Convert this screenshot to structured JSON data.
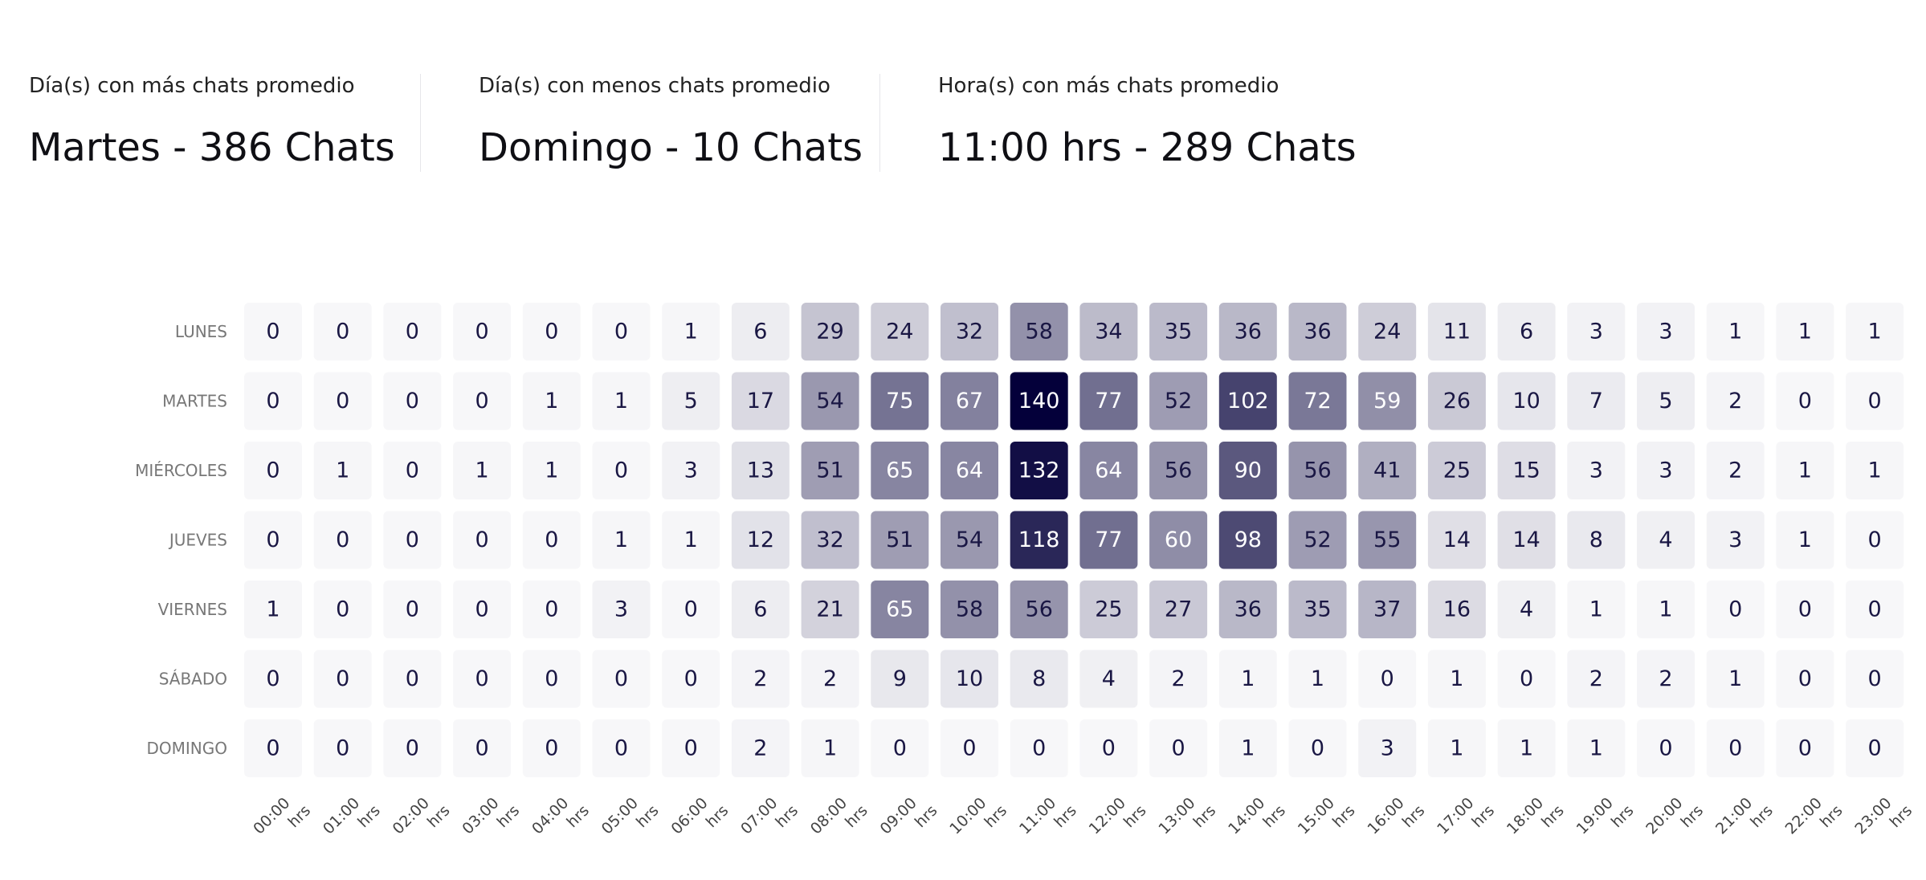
{
  "stats": [
    {
      "label": "Día(s) con más chats promedio",
      "value": "Martes - 386 Chats"
    },
    {
      "label": "Día(s) con menos chats promedio",
      "value": "Domingo - 10 Chats"
    },
    {
      "label": "Hora(s) con más chats promedio",
      "value": "11:00 hrs - 289 Chats"
    }
  ],
  "colors": {
    "cell_base": "#04003a",
    "text_dark": "#1a1744",
    "text_light": "#ffffff",
    "day_label": "#777777",
    "hour_label": "#444444"
  },
  "chart_data": {
    "type": "heatmap",
    "title": "",
    "xlabel": "",
    "ylabel": "",
    "rows": [
      "LUNES",
      "MARTES",
      "MIÉRCOLES",
      "JUEVES",
      "VIERNES",
      "SÁBADO",
      "DOMINGO"
    ],
    "columns": [
      "00:00",
      "01:00",
      "02:00",
      "03:00",
      "04:00",
      "05:00",
      "06:00",
      "07:00",
      "08:00",
      "09:00",
      "10:00",
      "11:00",
      "12:00",
      "13:00",
      "14:00",
      "15:00",
      "16:00",
      "17:00",
      "18:00",
      "19:00",
      "20:00",
      "21:00",
      "22:00",
      "23:00"
    ],
    "column_suffix": "hrs",
    "max_value": 140,
    "values": [
      [
        0,
        0,
        0,
        0,
        0,
        0,
        1,
        6,
        29,
        24,
        32,
        58,
        34,
        35,
        36,
        36,
        24,
        11,
        6,
        3,
        3,
        1,
        1,
        1
      ],
      [
        0,
        0,
        0,
        0,
        1,
        1,
        5,
        17,
        54,
        75,
        67,
        140,
        77,
        52,
        102,
        72,
        59,
        26,
        10,
        7,
        5,
        2,
        0,
        0
      ],
      [
        0,
        1,
        0,
        1,
        1,
        0,
        3,
        13,
        51,
        65,
        64,
        132,
        64,
        56,
        90,
        56,
        41,
        25,
        15,
        3,
        3,
        2,
        1,
        1
      ],
      [
        0,
        0,
        0,
        0,
        0,
        1,
        1,
        12,
        32,
        51,
        54,
        118,
        77,
        60,
        98,
        52,
        55,
        14,
        14,
        8,
        4,
        3,
        1,
        0
      ],
      [
        1,
        0,
        0,
        0,
        0,
        3,
        0,
        6,
        21,
        65,
        58,
        56,
        25,
        27,
        36,
        35,
        37,
        16,
        4,
        1,
        1,
        0,
        0,
        0
      ],
      [
        0,
        0,
        0,
        0,
        0,
        0,
        0,
        2,
        2,
        9,
        10,
        8,
        4,
        2,
        1,
        1,
        0,
        1,
        0,
        2,
        2,
        1,
        0,
        0
      ],
      [
        0,
        0,
        0,
        0,
        0,
        0,
        0,
        2,
        1,
        0,
        0,
        0,
        0,
        0,
        1,
        0,
        3,
        1,
        1,
        1,
        0,
        0,
        0,
        0
      ]
    ]
  }
}
